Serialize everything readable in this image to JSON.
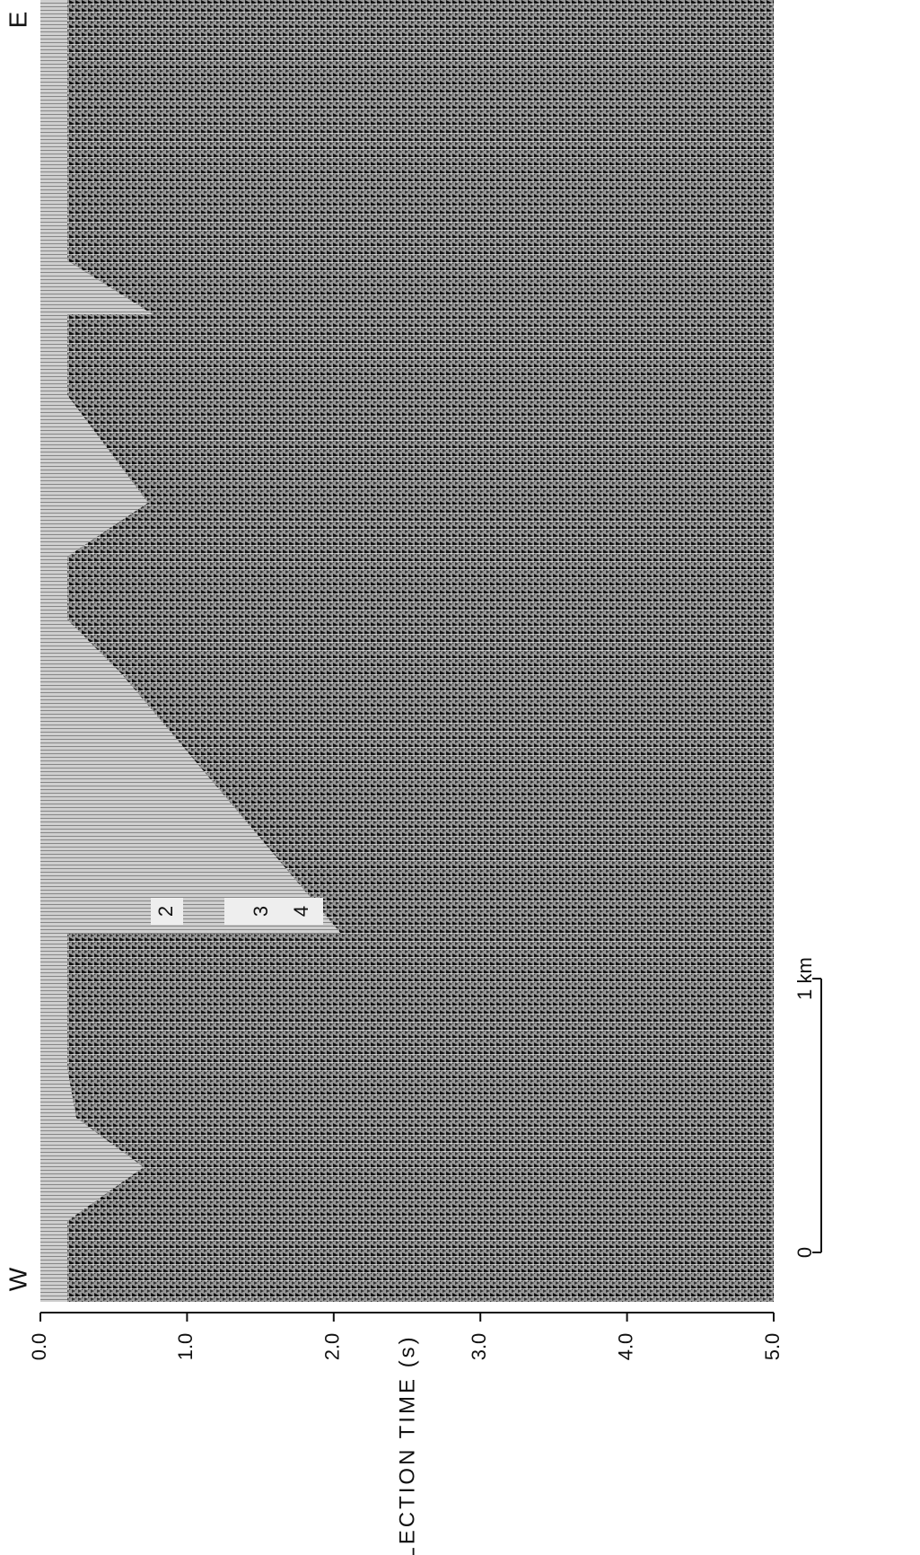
{
  "chart_data": {
    "type": "seismic-section",
    "xlabel": "REFLECTION TIME (s)",
    "xlim": [
      0,
      5
    ],
    "xticks": [
      {
        "value": 0,
        "label": "0.0"
      },
      {
        "value": 1,
        "label": "1.0"
      },
      {
        "value": 2,
        "label": "2.0"
      },
      {
        "value": 3,
        "label": "3.0"
      },
      {
        "value": 4,
        "label": "4.0"
      },
      {
        "value": 5,
        "label": "5.0"
      }
    ],
    "west_label": "W",
    "east_label": "E",
    "horizon_labels": [
      "2",
      "3",
      "4"
    ],
    "scale_bar": {
      "ticks": [
        {
          "value": 0,
          "label": "0"
        },
        {
          "value": 1,
          "label": "1 km"
        }
      ]
    }
  }
}
